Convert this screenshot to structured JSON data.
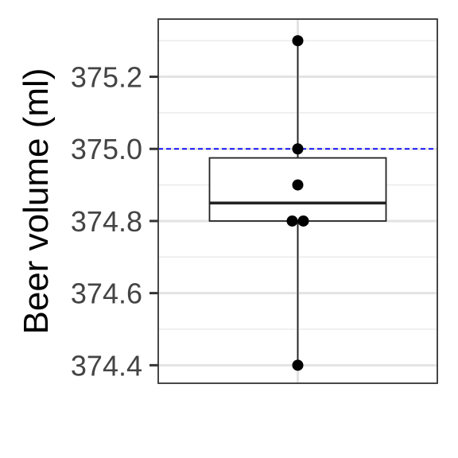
{
  "chart_data": {
    "type": "box",
    "ylabel": "Beer volume (ml)",
    "xlabel": "",
    "title": "",
    "ylim": [
      374.35,
      375.36
    ],
    "y_ticks": [
      374.4,
      374.6,
      374.8,
      375.0,
      375.2
    ],
    "y_tick_labels": [
      "374.4",
      "374.6",
      "374.8",
      "375.0",
      "375.2"
    ],
    "points": [
      375.3,
      375.0,
      374.9,
      374.8,
      374.8,
      374.4
    ],
    "box": {
      "q1": 374.8,
      "median": 374.85,
      "q3": 374.975,
      "whisker_low": 374.4,
      "whisker_high": 375.3
    },
    "reference_line": {
      "y": 375.0,
      "color": "#0000ff",
      "style": "dashed"
    },
    "grid": true,
    "point_color": "#000000",
    "box_color": "#222222"
  }
}
